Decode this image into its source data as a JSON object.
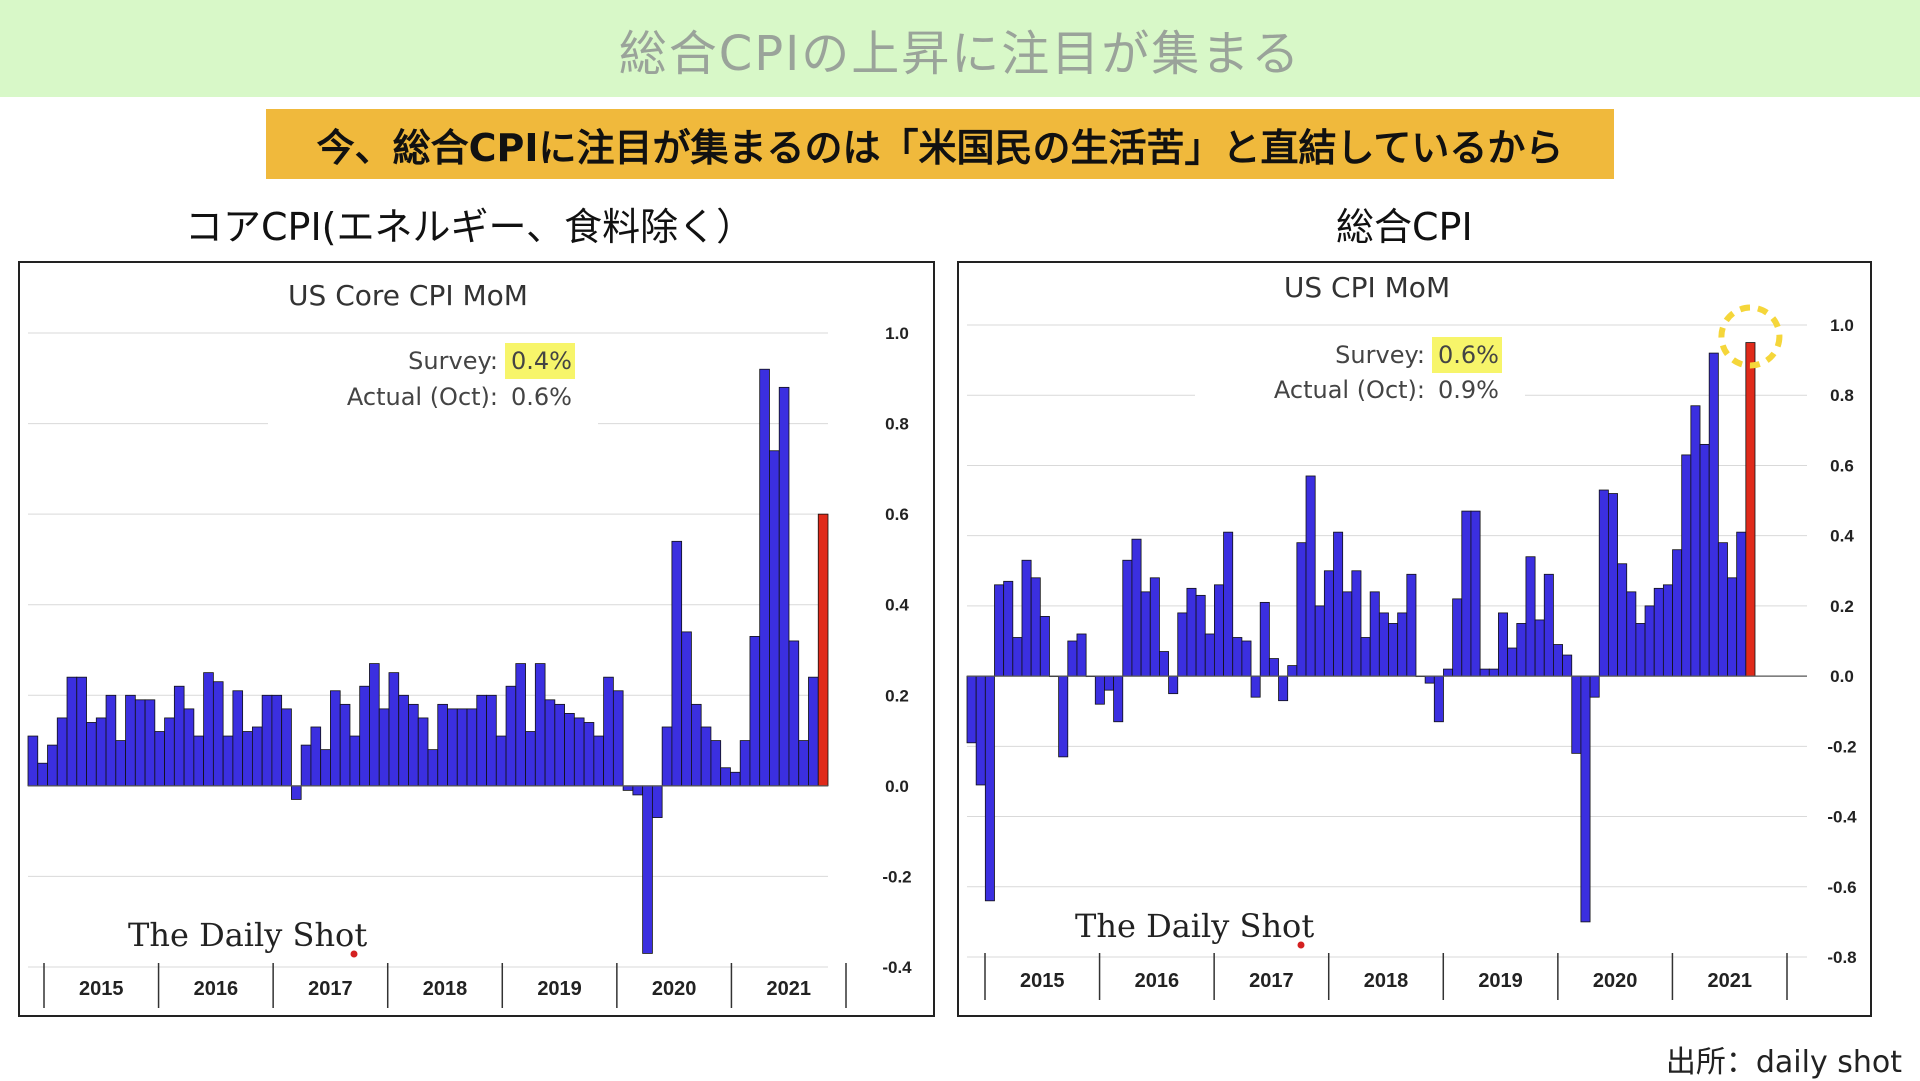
{
  "banner": {
    "title": "総合CPIの上昇に注目が集まる"
  },
  "headline": {
    "text": "今、総合CPIに注目が集まるのは「米国民の生活苦」と直結しているから"
  },
  "left_label": "コアCPI(エネルギー、食料除く）",
  "right_label": "総合CPI",
  "source": "出所：daily shot",
  "colors": {
    "bar": "#3b2fe0",
    "latest": "#e02a1a",
    "highlight": "#f7f56a",
    "circle": "#f5d63a"
  },
  "chart_data": [
    {
      "type": "bar",
      "title": "US Core CPI MoM",
      "survey_label": "Survey:",
      "survey_value": "0.4%",
      "actual_label": "Actual (Oct):",
      "actual_value": "0.6%",
      "watermark": "The Daily Shot",
      "ylim": [
        -0.4,
        1.0
      ],
      "yticks": [
        "1.0",
        "0.8",
        "0.6",
        "0.4",
        "0.2",
        "0.0",
        "-0.2",
        "-0.4"
      ],
      "ytick_values": [
        1.0,
        0.8,
        0.6,
        0.4,
        0.2,
        0.0,
        -0.2,
        -0.4
      ],
      "years": [
        "2015",
        "2016",
        "2017",
        "2018",
        "2019",
        "2020",
        "2021"
      ],
      "values": [
        0.11,
        0.05,
        0.09,
        0.15,
        0.24,
        0.24,
        0.14,
        0.15,
        0.2,
        0.1,
        0.2,
        0.19,
        0.19,
        0.12,
        0.15,
        0.22,
        0.17,
        0.11,
        0.25,
        0.23,
        0.11,
        0.21,
        0.12,
        0.13,
        0.2,
        0.2,
        0.17,
        -0.03,
        0.09,
        0.13,
        0.08,
        0.21,
        0.18,
        0.11,
        0.22,
        0.27,
        0.17,
        0.25,
        0.2,
        0.18,
        0.15,
        0.08,
        0.18,
        0.17,
        0.17,
        0.17,
        0.2,
        0.2,
        0.11,
        0.22,
        0.27,
        0.12,
        0.27,
        0.19,
        0.18,
        0.16,
        0.15,
        0.14,
        0.11,
        0.24,
        0.21,
        -0.01,
        -0.02,
        -0.37,
        -0.07,
        0.13,
        0.54,
        0.34,
        0.18,
        0.13,
        0.1,
        0.04,
        0.03,
        0.1,
        0.33,
        0.92,
        0.74,
        0.88,
        0.32,
        0.1,
        0.24,
        0.6
      ],
      "highlight_last": true
    },
    {
      "type": "bar",
      "title": "US CPI MoM",
      "survey_label": "Survey:",
      "survey_value": "0.6%",
      "actual_label": "Actual (Oct):",
      "actual_value": "0.9%",
      "watermark": "The Daily Shot",
      "ylim": [
        -0.8,
        1.0
      ],
      "yticks": [
        "1.0",
        "0.8",
        "0.6",
        "0.4",
        "0.2",
        "0.0",
        "-0.2",
        "-0.4",
        "-0.6",
        "-0.8"
      ],
      "ytick_values": [
        1.0,
        0.8,
        0.6,
        0.4,
        0.2,
        0.0,
        -0.2,
        -0.4,
        -0.6,
        -0.8
      ],
      "years": [
        "2015",
        "2016",
        "2017",
        "2018",
        "2019",
        "2020",
        "2021"
      ],
      "values": [
        -0.19,
        -0.31,
        -0.64,
        0.26,
        0.27,
        0.11,
        0.33,
        0.28,
        0.17,
        0.0,
        -0.23,
        0.1,
        0.12,
        0.0,
        -0.08,
        -0.04,
        -0.13,
        0.33,
        0.39,
        0.24,
        0.28,
        0.07,
        -0.05,
        0.18,
        0.25,
        0.23,
        0.12,
        0.26,
        0.41,
        0.11,
        0.1,
        -0.06,
        0.21,
        0.05,
        -0.07,
        0.03,
        0.38,
        0.57,
        0.2,
        0.3,
        0.41,
        0.24,
        0.3,
        0.11,
        0.24,
        0.18,
        0.15,
        0.18,
        0.29,
        0.0,
        -0.02,
        -0.13,
        0.02,
        0.22,
        0.47,
        0.47,
        0.02,
        0.02,
        0.18,
        0.08,
        0.15,
        0.34,
        0.16,
        0.29,
        0.09,
        0.06,
        -0.22,
        -0.7,
        -0.06,
        0.53,
        0.52,
        0.32,
        0.24,
        0.15,
        0.2,
        0.25,
        0.26,
        0.36,
        0.63,
        0.77,
        0.66,
        0.92,
        0.38,
        0.28,
        0.41,
        0.95
      ],
      "highlight_last": true
    }
  ]
}
